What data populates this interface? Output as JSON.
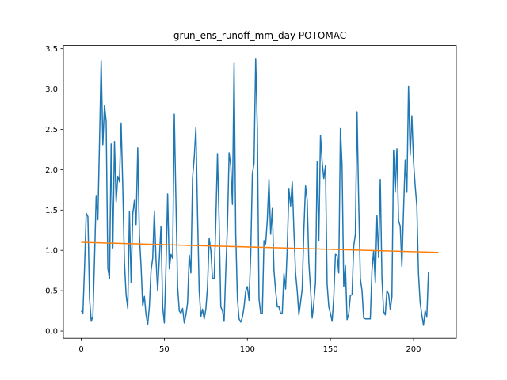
{
  "chart_data": {
    "type": "line",
    "title": "grun_ens_runoff_mm_day POTOMAC",
    "xlabel": "",
    "ylabel": "",
    "xlim": [
      -10.75,
      225.75
    ],
    "ylim": [
      -0.09,
      3.54
    ],
    "xticks": [
      0,
      50,
      100,
      150,
      200
    ],
    "yticks": [
      0.0,
      0.5,
      1.0,
      1.5,
      2.0,
      2.5,
      3.0,
      3.5
    ],
    "ytick_labels": [
      "0.0",
      "0.5",
      "1.0",
      "1.5",
      "2.0",
      "2.5",
      "3.0",
      "3.5"
    ],
    "grid": false,
    "series": [
      {
        "color": "#1f77b4",
        "values": [
          0.25,
          0.22,
          0.8,
          1.46,
          1.42,
          0.4,
          0.12,
          0.18,
          0.9,
          1.68,
          1.38,
          2.35,
          3.35,
          2.31,
          2.8,
          2.6,
          0.78,
          0.65,
          2.32,
          1.03,
          2.35,
          1.6,
          1.92,
          1.85,
          2.58,
          1.78,
          0.85,
          0.45,
          0.28,
          1.48,
          0.6,
          1.45,
          1.62,
          1.32,
          2.27,
          1.18,
          0.8,
          0.31,
          0.43,
          0.2,
          0.08,
          0.3,
          0.75,
          0.9,
          1.49,
          0.88,
          0.5,
          0.9,
          1.3,
          0.3,
          0.1,
          0.8,
          1.7,
          0.77,
          0.95,
          0.9,
          2.69,
          1.6,
          0.55,
          0.25,
          0.22,
          0.28,
          0.1,
          0.2,
          0.35,
          0.94,
          0.72,
          1.9,
          2.15,
          2.52,
          1.45,
          0.5,
          0.18,
          0.27,
          0.15,
          0.27,
          0.55,
          1.15,
          1.0,
          0.65,
          0.65,
          1.35,
          2.2,
          1.35,
          0.3,
          0.25,
          0.12,
          0.75,
          1.3,
          2.21,
          2.05,
          1.57,
          3.33,
          1.2,
          0.4,
          0.15,
          0.11,
          0.17,
          0.3,
          0.5,
          0.55,
          0.38,
          0.95,
          1.95,
          2.08,
          3.38,
          2.5,
          0.4,
          0.22,
          0.22,
          1.12,
          1.08,
          1.38,
          1.88,
          1.2,
          1.52,
          0.75,
          0.5,
          0.3,
          0.3,
          0.22,
          0.22,
          0.71,
          0.52,
          1.02,
          1.76,
          1.55,
          1.85,
          1.25,
          0.72,
          0.5,
          0.2,
          0.35,
          0.52,
          1.25,
          1.8,
          1.62,
          0.85,
          0.52,
          0.16,
          0.35,
          0.6,
          2.1,
          1.12,
          2.43,
          2.1,
          1.89,
          2.05,
          0.58,
          0.3,
          0.22,
          0.12,
          0.42,
          0.95,
          0.94,
          0.72,
          2.51,
          2.05,
          0.55,
          0.81,
          0.14,
          0.21,
          0.44,
          0.45,
          1.05,
          1.2,
          2.72,
          1.6,
          0.65,
          0.5,
          0.16,
          0.15,
          0.15,
          0.15,
          0.15,
          0.75,
          1.0,
          0.6,
          1.43,
          0.91,
          1.88,
          0.65,
          0.24,
          0.2,
          0.5,
          0.46,
          0.27,
          0.42,
          2.24,
          1.72,
          2.26,
          1.37,
          1.3,
          0.8,
          1.5,
          2.12,
          1.72,
          3.04,
          2.18,
          2.67,
          2.1,
          1.8,
          1.55,
          0.71,
          0.35,
          0.2,
          0.07,
          0.25,
          0.17,
          0.73
        ]
      },
      {
        "color": "#ff7f0e",
        "x": [
          0,
          215
        ],
        "values": [
          1.1,
          0.975
        ]
      }
    ]
  }
}
